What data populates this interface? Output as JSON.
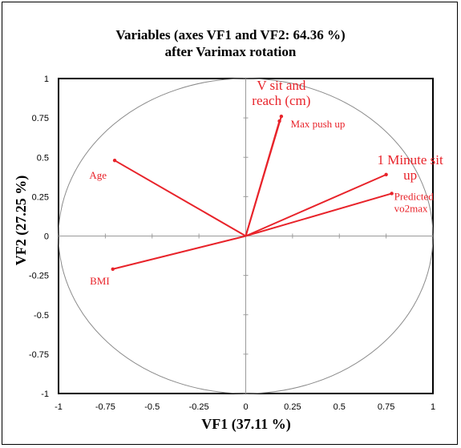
{
  "chart_data": {
    "type": "scatter",
    "subtype": "pca-variable-correlation-circle",
    "title_lines": [
      "Variables (axes VF1 and VF2: 64.36 %)",
      "after Varimax rotation"
    ],
    "xlabel": "VF1 (37.11 %)",
    "ylabel": "VF2 (27.25 %)",
    "xlim": [
      -1,
      1
    ],
    "ylim": [
      -1,
      1
    ],
    "xticks": [
      "-1",
      "-0.75",
      "-0.5",
      "-0.25",
      "0",
      "0.25",
      "0.5",
      "0.75",
      "1"
    ],
    "yticks": [
      "1",
      "0.75",
      "0.5",
      "0.25",
      "0",
      "-0.25",
      "-0.5",
      "-0.75",
      "-1"
    ],
    "grid": false,
    "unit_circle": true,
    "series_color": "#e8232a",
    "variables": [
      {
        "label": "V sit and reach (cm)",
        "lines": [
          "V sit and",
          "reach (cm)"
        ],
        "x": 0.19,
        "y": 0.76,
        "size": "large"
      },
      {
        "label": "Max push up",
        "lines": [
          "Max push up"
        ],
        "x": 0.18,
        "y": 0.73,
        "size": "small"
      },
      {
        "label": "Age",
        "lines": [
          "Age"
        ],
        "x": -0.7,
        "y": 0.48,
        "size": "small"
      },
      {
        "label": "1 Minute sit up",
        "lines": [
          "1 Minute sit",
          "up"
        ],
        "x": 0.75,
        "y": 0.39,
        "size": "large"
      },
      {
        "label": "Predicted vo2max",
        "lines": [
          "Predicted",
          "vo2max"
        ],
        "x": 0.78,
        "y": 0.27,
        "size": "small"
      },
      {
        "label": "BMI",
        "lines": [
          "BMI"
        ],
        "x": -0.71,
        "y": -0.21,
        "size": "small"
      }
    ]
  }
}
